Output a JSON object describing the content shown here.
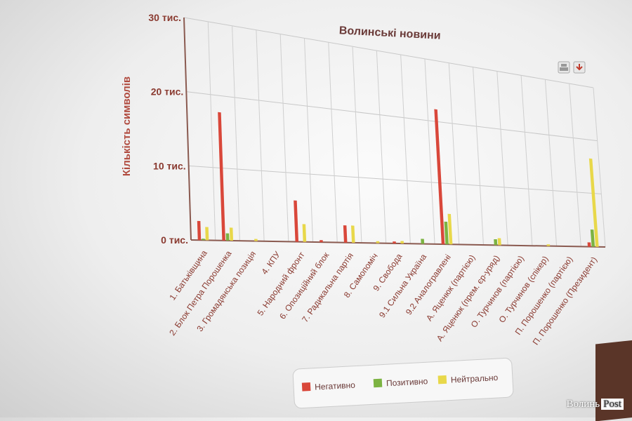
{
  "chart_data": {
    "type": "bar",
    "title": "Волинські новини",
    "ylabel": "Кількість символів",
    "xlabel": "",
    "ylim": [
      0,
      30000
    ],
    "y_ticks": [
      "0 тис.",
      "10 тис.",
      "20 тис.",
      "30 тис."
    ],
    "grid": true,
    "legend_position": "bottom",
    "categories": [
      "1. Батьківщина",
      "2. Блок Петра Порошенка",
      "3. Громадянська позиція",
      "4. КПУ",
      "5. Народний фронт",
      "6. Опозиційний блок",
      "7. Радикальна партія",
      "8. Самопоміч",
      "9. Свобода",
      "9.1 Сильна Україна",
      "9.2 Аналогравлені",
      "А. Яценюк (партією)",
      "А. Яценюк (прем. єр-уряд)",
      "О. Турчинов (партією)",
      "О. Турчинов (спікер)",
      "П. Порошенко (партією)",
      "П. Порошенко (Президент)"
    ],
    "series": [
      {
        "name": "Негативно",
        "color": "#d9473a",
        "values": [
          2600,
          17700,
          0,
          0,
          6000,
          300,
          2600,
          0,
          300,
          0,
          22000,
          0,
          0,
          0,
          0,
          0,
          800
        ]
      },
      {
        "name": "Позитивно",
        "color": "#7cb342",
        "values": [
          200,
          1000,
          0,
          0,
          0,
          0,
          0,
          0,
          0,
          800,
          3700,
          0,
          1000,
          0,
          0,
          0,
          3200
        ]
      },
      {
        "name": "Нейтрально",
        "color": "#e8d84a",
        "values": [
          1800,
          1800,
          300,
          0,
          2600,
          0,
          2600,
          300,
          400,
          0,
          5000,
          0,
          1200,
          0,
          300,
          0,
          16500
        ]
      }
    ]
  },
  "toolbar": {
    "print_icon": "print-icon",
    "download_icon": "download-icon"
  },
  "watermark": {
    "name": "Волинь",
    "suffix": "Post"
  }
}
